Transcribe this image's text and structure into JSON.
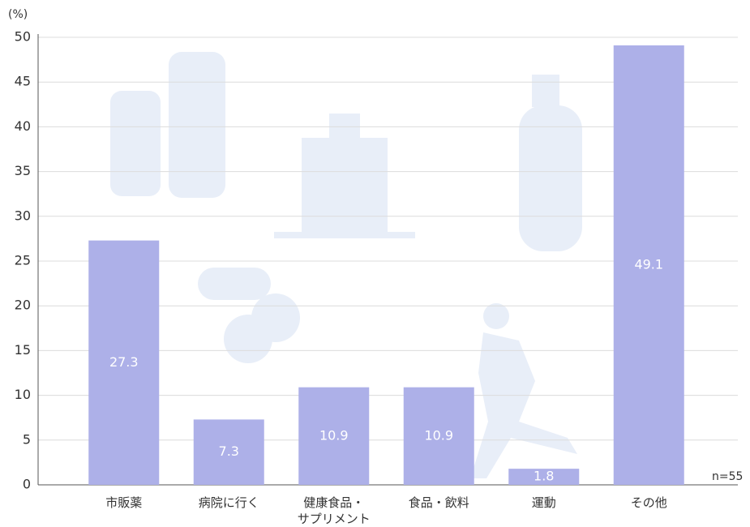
{
  "chart_data": {
    "type": "bar",
    "y_unit": "(%)",
    "note": "n=55",
    "categories": [
      "市販薬",
      "病院に行く",
      "健康食品・\nサプリメント",
      "食品・飲料",
      "運動",
      "その他"
    ],
    "values": [
      27.3,
      7.3,
      10.9,
      10.9,
      1.8,
      49.1
    ],
    "color": "#adb0e8",
    "ylim": [
      0,
      50
    ],
    "yticks": [
      0,
      5,
      10,
      15,
      20,
      25,
      30,
      35,
      40,
      45,
      50
    ],
    "grid": true
  }
}
